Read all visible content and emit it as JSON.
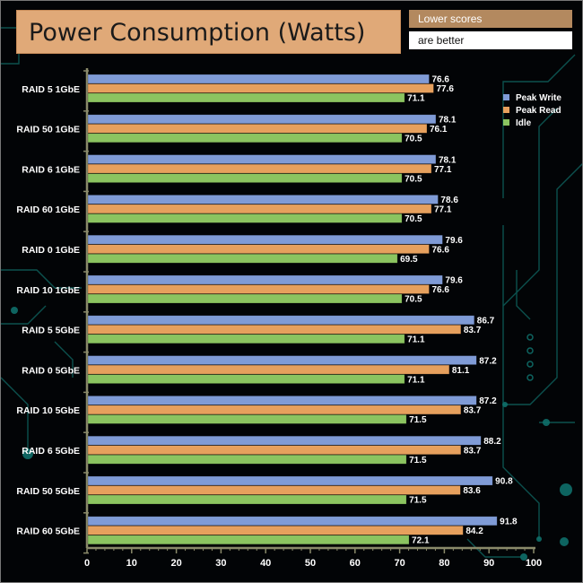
{
  "header": {
    "title": "Power Consumption (Watts)",
    "note_line1": "Lower scores",
    "note_line2": "are better"
  },
  "colors": {
    "peak_write": "#7f9bd6",
    "peak_read": "#e6a05d",
    "idle": "#8bc460",
    "axis": "#8a8a6a",
    "title_bg": "#e0a978",
    "note_bg": "#b3895f",
    "decor": "#0f6f6a"
  },
  "chart_data": {
    "type": "bar",
    "orientation": "horizontal",
    "title": "Power Consumption (Watts)",
    "xlabel": "",
    "ylabel": "",
    "xlim": [
      0,
      100
    ],
    "ticks": [
      0,
      10,
      20,
      30,
      40,
      50,
      60,
      70,
      80,
      90,
      100
    ],
    "legend_position": "top-right",
    "categories": [
      "RAID 5 1GbE",
      "RAID 50 1GbE",
      "RAID 6 1GbE",
      "RAID 60 1GbE",
      "RAID 0 1GbE",
      "RAID 10 1GbE",
      "RAID 5 5GbE",
      "RAID 0 5GbE",
      "RAID 10 5GbE",
      "RAID 6 5GbE",
      "RAID 50 5GbE",
      "RAID 60 5GbE"
    ],
    "series": [
      {
        "name": "Peak Write",
        "key": "peak_write",
        "values": [
          76.6,
          78.1,
          78.1,
          78.6,
          79.6,
          79.6,
          86.7,
          87.2,
          87.2,
          88.2,
          90.8,
          91.8
        ]
      },
      {
        "name": "Peak Read",
        "key": "peak_read",
        "values": [
          77.6,
          76.1,
          77.1,
          77.1,
          76.6,
          76.6,
          83.7,
          81.1,
          83.7,
          83.7,
          83.6,
          84.2
        ]
      },
      {
        "name": "Idle",
        "key": "idle",
        "values": [
          71.1,
          70.5,
          70.5,
          70.5,
          69.5,
          70.5,
          71.1,
          71.1,
          71.5,
          71.5,
          71.5,
          72.1
        ]
      }
    ]
  }
}
